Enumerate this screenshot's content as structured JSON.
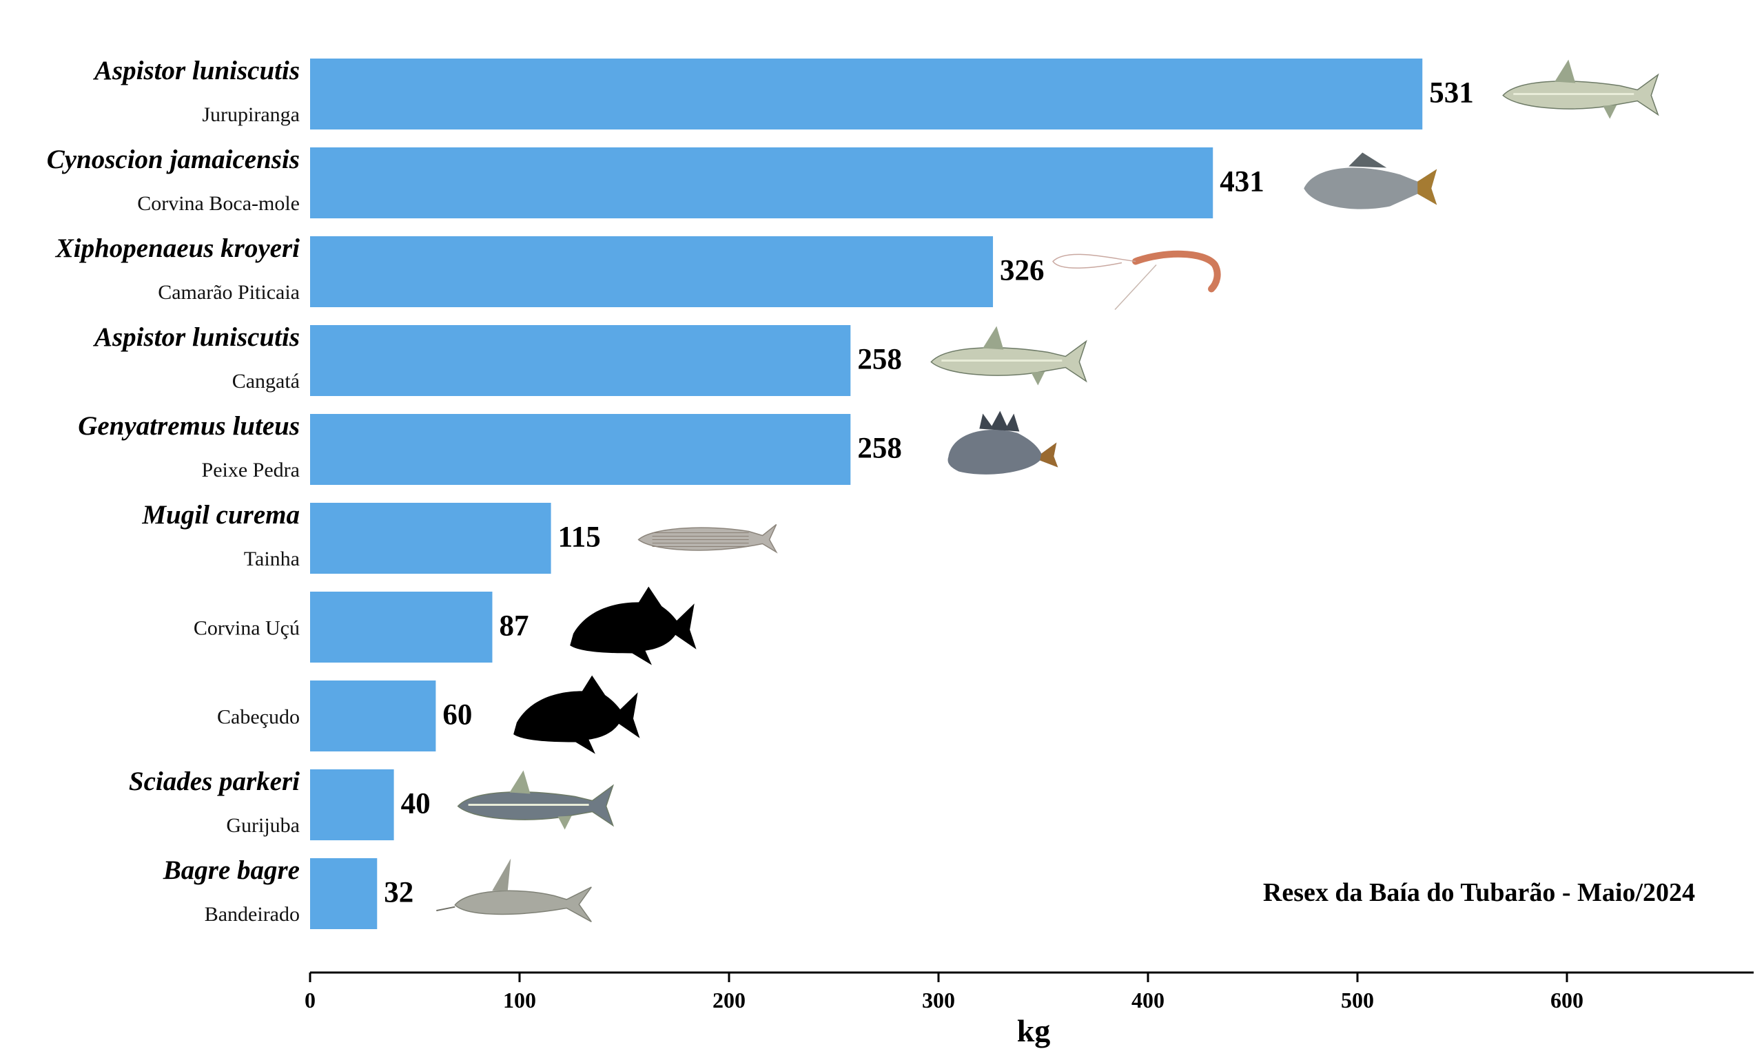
{
  "chart_data": {
    "type": "bar",
    "orientation": "horizontal",
    "xlabel": "kg",
    "xlim": [
      0,
      690
    ],
    "xticks": [
      0,
      100,
      200,
      300,
      400,
      500,
      600
    ],
    "annotation": "Resex da Baía do Tubarão - Maio/2024",
    "bar_color": "#5ba8e6",
    "categories": [
      {
        "scientific": "Aspistor luniscutis",
        "common": "Jurupiranga",
        "value": 531,
        "icon": "catfish-photo-icon"
      },
      {
        "scientific": "Cynoscion jamaicensis",
        "common": "Corvina Boca-mole",
        "value": 431,
        "icon": "weakfish-photo-icon"
      },
      {
        "scientific": "Xiphopenaeus kroyeri",
        "common": "Camarão Piticaia",
        "value": 326,
        "icon": "shrimp-photo-icon"
      },
      {
        "scientific": "Aspistor luniscutis",
        "common": "Cangatá",
        "value": 258,
        "icon": "catfish-photo-icon"
      },
      {
        "scientific": "Genyatremus luteus",
        "common": "Peixe Pedra",
        "value": 258,
        "icon": "grunt-fish-photo-icon"
      },
      {
        "scientific": "Mugil curema",
        "common": "Tainha",
        "value": 115,
        "icon": "mullet-photo-icon"
      },
      {
        "scientific": "",
        "common": "Corvina Uçú",
        "value": 87,
        "icon": "fish-silhouette-icon"
      },
      {
        "scientific": "",
        "common": "Cabeçudo",
        "value": 60,
        "icon": "fish-silhouette-icon"
      },
      {
        "scientific": "Sciades parkeri",
        "common": "Gurijuba",
        "value": 40,
        "icon": "catfish-photo-icon"
      },
      {
        "scientific": "Bagre bagre",
        "common": "Bandeirado",
        "value": 32,
        "icon": "bagre-photo-icon"
      }
    ]
  }
}
